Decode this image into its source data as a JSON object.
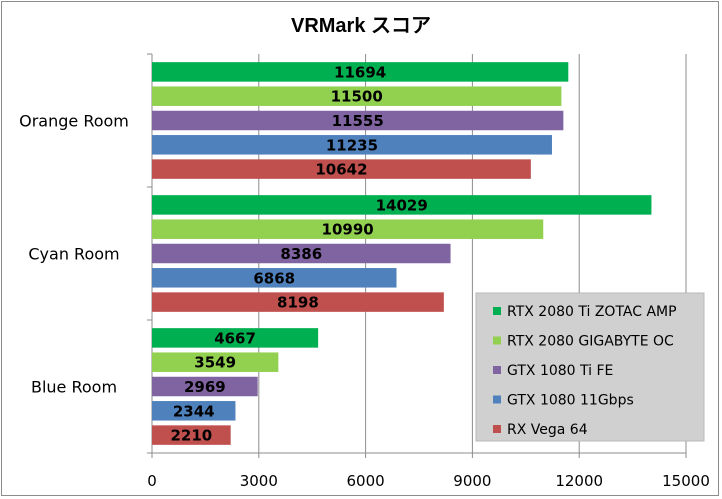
{
  "chart_data": {
    "type": "bar",
    "orientation": "horizontal",
    "title": "VRMark スコア",
    "categories": [
      "Orange Room",
      "Cyan Room",
      "Blue Room"
    ],
    "series": [
      {
        "name": "RTX 2080 Ti ZOTAC AMP",
        "color": "#00b050",
        "values": [
          11694,
          14029,
          4667
        ]
      },
      {
        "name": "RTX 2080 GIGABYTE OC",
        "color": "#92d050",
        "values": [
          11500,
          10990,
          3549
        ]
      },
      {
        "name": "GTX 1080 Ti FE",
        "color": "#8064a2",
        "values": [
          11555,
          8386,
          2969
        ]
      },
      {
        "name": "GTX 1080 11Gbps",
        "color": "#4f81bd",
        "values": [
          11235,
          6868,
          2344
        ]
      },
      {
        "name": "RX Vega 64",
        "color": "#c0504d",
        "values": [
          10642,
          8198,
          2210
        ]
      }
    ],
    "xlim": [
      0,
      15000
    ],
    "xticks": [
      0,
      3000,
      6000,
      9000,
      12000,
      15000
    ],
    "grid": true,
    "legend_position": "bottom-right"
  }
}
